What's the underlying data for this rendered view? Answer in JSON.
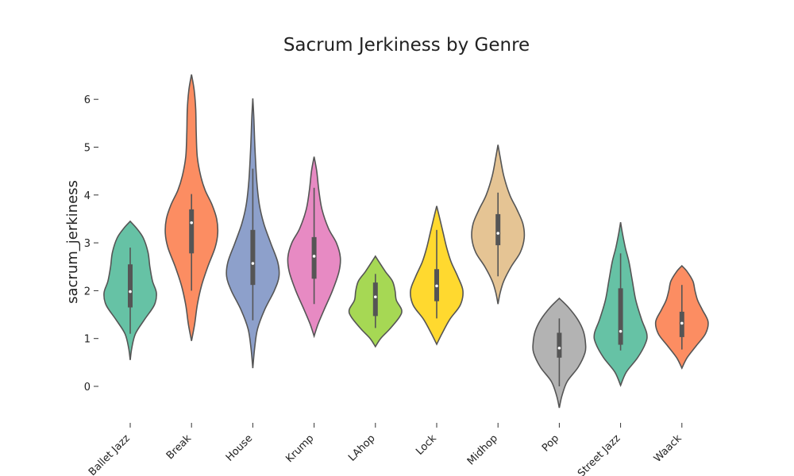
{
  "chart_data": {
    "type": "violin",
    "title": "Sacrum Jerkiness by Genre",
    "xlabel": "",
    "ylabel": "sacrum_jerkiness",
    "ylim": [
      -0.8,
      6.8
    ],
    "yticks": [
      0,
      1,
      2,
      3,
      4,
      5,
      6
    ],
    "grid": false,
    "categories": [
      "Ballet Jazz",
      "Break",
      "House",
      "Krump",
      "LAhop",
      "Lock",
      "Midhop",
      "Pop",
      "Street Jazz",
      "Waack"
    ],
    "colors": [
      "#66c2a5",
      "#fc8d62",
      "#8da0cb",
      "#e78ac3",
      "#a6d854",
      "#ffd92f",
      "#e5c494",
      "#b3b3b3",
      "#66c2a5",
      "#fc8d62"
    ],
    "violins": [
      {
        "median": 1.98,
        "q1": 1.65,
        "q3": 2.55,
        "whisker_low": 1.1,
        "whisker_high": 2.9,
        "profile": [
          [
            0.55,
            0
          ],
          [
            0.8,
            0.06
          ],
          [
            1.1,
            0.2
          ],
          [
            1.4,
            0.55
          ],
          [
            1.7,
            0.92
          ],
          [
            1.95,
            1.0
          ],
          [
            2.2,
            0.85
          ],
          [
            2.5,
            0.75
          ],
          [
            2.8,
            0.68
          ],
          [
            3.1,
            0.5
          ],
          [
            3.3,
            0.25
          ],
          [
            3.45,
            0
          ]
        ]
      },
      {
        "median": 3.42,
        "q1": 2.78,
        "q3": 3.7,
        "whisker_low": 2.0,
        "whisker_high": 4.02,
        "profile": [
          [
            0.95,
            0
          ],
          [
            1.3,
            0.12
          ],
          [
            1.7,
            0.22
          ],
          [
            2.1,
            0.38
          ],
          [
            2.5,
            0.62
          ],
          [
            2.9,
            0.9
          ],
          [
            3.2,
            1.0
          ],
          [
            3.5,
            0.96
          ],
          [
            3.8,
            0.78
          ],
          [
            4.1,
            0.52
          ],
          [
            4.4,
            0.35
          ],
          [
            4.8,
            0.22
          ],
          [
            5.3,
            0.18
          ],
          [
            5.8,
            0.16
          ],
          [
            6.2,
            0.1
          ],
          [
            6.52,
            0
          ]
        ]
      },
      {
        "median": 2.57,
        "q1": 2.12,
        "q3": 3.27,
        "whisker_low": 1.38,
        "whisker_high": 4.55,
        "profile": [
          [
            0.38,
            0
          ],
          [
            0.8,
            0.07
          ],
          [
            1.2,
            0.18
          ],
          [
            1.6,
            0.45
          ],
          [
            2.0,
            0.82
          ],
          [
            2.3,
            1.0
          ],
          [
            2.6,
            0.95
          ],
          [
            3.0,
            0.68
          ],
          [
            3.4,
            0.42
          ],
          [
            3.8,
            0.25
          ],
          [
            4.3,
            0.15
          ],
          [
            5.0,
            0.08
          ],
          [
            5.6,
            0.04
          ],
          [
            6.02,
            0
          ]
        ]
      },
      {
        "median": 2.72,
        "q1": 2.25,
        "q3": 3.12,
        "whisker_low": 1.72,
        "whisker_high": 4.15,
        "profile": [
          [
            1.05,
            0
          ],
          [
            1.3,
            0.15
          ],
          [
            1.6,
            0.38
          ],
          [
            2.0,
            0.7
          ],
          [
            2.4,
            0.95
          ],
          [
            2.7,
            1.0
          ],
          [
            3.0,
            0.85
          ],
          [
            3.3,
            0.55
          ],
          [
            3.7,
            0.3
          ],
          [
            4.1,
            0.18
          ],
          [
            4.5,
            0.1
          ],
          [
            4.8,
            0
          ]
        ]
      },
      {
        "median": 1.87,
        "q1": 1.47,
        "q3": 2.17,
        "whisker_low": 1.22,
        "whisker_high": 2.35,
        "profile": [
          [
            0.83,
            0
          ],
          [
            1.0,
            0.2
          ],
          [
            1.2,
            0.55
          ],
          [
            1.45,
            0.92
          ],
          [
            1.6,
            1.0
          ],
          [
            1.8,
            0.8
          ],
          [
            2.0,
            0.75
          ],
          [
            2.2,
            0.65
          ],
          [
            2.4,
            0.38
          ],
          [
            2.6,
            0.14
          ],
          [
            2.72,
            0
          ]
        ]
      },
      {
        "median": 2.1,
        "q1": 1.78,
        "q3": 2.45,
        "whisker_low": 1.42,
        "whisker_high": 3.27,
        "profile": [
          [
            0.88,
            0
          ],
          [
            1.1,
            0.2
          ],
          [
            1.4,
            0.5
          ],
          [
            1.7,
            0.9
          ],
          [
            2.0,
            1.0
          ],
          [
            2.3,
            0.8
          ],
          [
            2.6,
            0.55
          ],
          [
            2.9,
            0.38
          ],
          [
            3.2,
            0.25
          ],
          [
            3.5,
            0.12
          ],
          [
            3.77,
            0
          ]
        ]
      },
      {
        "median": 3.2,
        "q1": 2.95,
        "q3": 3.6,
        "whisker_low": 2.3,
        "whisker_high": 4.05,
        "profile": [
          [
            1.72,
            0
          ],
          [
            1.95,
            0.08
          ],
          [
            2.2,
            0.22
          ],
          [
            2.5,
            0.5
          ],
          [
            2.8,
            0.85
          ],
          [
            3.1,
            1.0
          ],
          [
            3.4,
            0.95
          ],
          [
            3.7,
            0.72
          ],
          [
            4.0,
            0.45
          ],
          [
            4.4,
            0.22
          ],
          [
            4.8,
            0.08
          ],
          [
            5.05,
            0
          ]
        ]
      },
      {
        "median": 0.8,
        "q1": 0.6,
        "q3": 1.12,
        "whisker_low": 0.0,
        "whisker_high": 1.42,
        "profile": [
          [
            -0.45,
            0
          ],
          [
            -0.2,
            0.1
          ],
          [
            0.1,
            0.3
          ],
          [
            0.4,
            0.72
          ],
          [
            0.7,
            0.98
          ],
          [
            0.9,
            1.0
          ],
          [
            1.15,
            0.92
          ],
          [
            1.4,
            0.7
          ],
          [
            1.65,
            0.35
          ],
          [
            1.84,
            0
          ]
        ]
      },
      {
        "median": 1.15,
        "q1": 0.87,
        "q3": 2.05,
        "whisker_low": 0.75,
        "whisker_high": 2.78,
        "profile": [
          [
            0.02,
            0
          ],
          [
            0.3,
            0.22
          ],
          [
            0.6,
            0.65
          ],
          [
            0.9,
            0.95
          ],
          [
            1.1,
            1.0
          ],
          [
            1.4,
            0.8
          ],
          [
            1.8,
            0.58
          ],
          [
            2.2,
            0.45
          ],
          [
            2.6,
            0.32
          ],
          [
            2.9,
            0.18
          ],
          [
            3.2,
            0.07
          ],
          [
            3.43,
            0
          ]
        ]
      },
      {
        "median": 1.32,
        "q1": 1.03,
        "q3": 1.56,
        "whisker_low": 0.77,
        "whisker_high": 2.12,
        "profile": [
          [
            0.38,
            0
          ],
          [
            0.6,
            0.2
          ],
          [
            0.85,
            0.55
          ],
          [
            1.1,
            0.9
          ],
          [
            1.35,
            1.0
          ],
          [
            1.6,
            0.78
          ],
          [
            1.8,
            0.6
          ],
          [
            2.0,
            0.5
          ],
          [
            2.2,
            0.42
          ],
          [
            2.4,
            0.2
          ],
          [
            2.52,
            0
          ]
        ]
      }
    ]
  }
}
